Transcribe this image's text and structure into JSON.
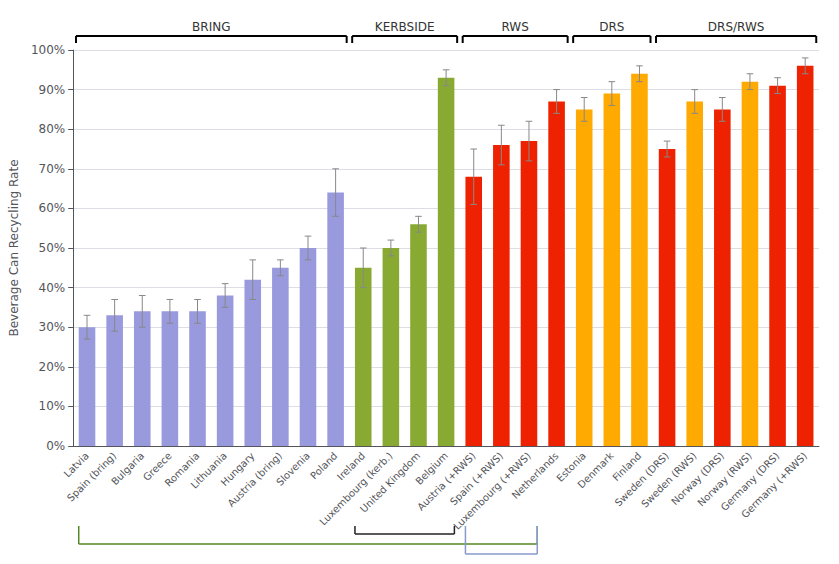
{
  "chart_data": {
    "type": "bar",
    "categories": [
      "Latvia",
      "Spain (bring)",
      "Bulgaria",
      "Greece",
      "Romania",
      "Lithuania",
      "Hungary",
      "Austria (bring)",
      "Slovenia",
      "Poland",
      "Ireland",
      "Luxembourg (kerb.)",
      "United Kingdom",
      "Belgium",
      "Austria (+RWS)",
      "Spain (+RWS)",
      "Luxembourg (+RWS)",
      "Netherlands",
      "Estonia",
      "Denmark",
      "Finland",
      "Sweden (DRS)",
      "Sweden (RWS)",
      "Norway (DRS)",
      "Norway (RWS)",
      "Germany (DRS)",
      "Germany (+RWS)"
    ],
    "values": [
      30,
      33,
      34,
      34,
      34,
      38,
      42,
      45,
      50,
      64,
      45,
      50,
      56,
      93,
      68,
      76,
      77,
      87,
      85,
      89,
      94,
      75,
      87,
      85,
      92,
      91,
      96
    ],
    "errors": [
      3,
      4,
      4,
      3,
      3,
      3,
      5,
      2,
      3,
      6,
      5,
      2,
      2,
      2,
      7,
      5,
      5,
      3,
      3,
      3,
      2,
      2,
      3,
      3,
      2,
      2,
      2
    ],
    "colors": [
      "#9999dd",
      "#9999dd",
      "#9999dd",
      "#9999dd",
      "#9999dd",
      "#9999dd",
      "#9999dd",
      "#9999dd",
      "#9999dd",
      "#9999dd",
      "#88aa33",
      "#88aa33",
      "#88aa33",
      "#88aa33",
      "#ee2200",
      "#ee2200",
      "#ee2200",
      "#ee2200",
      "#ffaa00",
      "#ffaa00",
      "#ffaa00",
      "#ee2200",
      "#ffaa00",
      "#ee2200",
      "#ffaa00",
      "#ee2200",
      "#ee2200"
    ],
    "ylabel": "Beverage Can Recycling Rate",
    "ylim": [
      0,
      100
    ],
    "yticks": [
      {
        "value": 0,
        "label": "0%"
      },
      {
        "value": 10,
        "label": "10%"
      },
      {
        "value": 20,
        "label": "20%"
      },
      {
        "value": 30,
        "label": "30%"
      },
      {
        "value": 40,
        "label": "40%"
      },
      {
        "value": 50,
        "label": "50%"
      },
      {
        "value": 60,
        "label": "60%"
      },
      {
        "value": 70,
        "label": "70%"
      },
      {
        "value": 80,
        "label": "80%"
      },
      {
        "value": 90,
        "label": "90%"
      },
      {
        "value": 100,
        "label": "100%"
      }
    ],
    "grid": true,
    "annotations": [
      {
        "text": "BRING",
        "from": "Latvia",
        "to": "Poland"
      },
      {
        "text": "KERBSIDE",
        "from": "Ireland",
        "to": "Belgium"
      },
      {
        "text": "RWS",
        "from": "Austria (+RWS)",
        "to": "Netherlands"
      },
      {
        "text": "DRS",
        "from": "Estonia",
        "to": "Finland"
      },
      {
        "text": "DRS/RWS",
        "from": "Sweden (DRS)",
        "to": "Germany (+RWS)"
      }
    ],
    "brackets": [
      {
        "from": "Latvia",
        "to": "Luxembourg (+RWS)",
        "color": "#558822"
      },
      {
        "from": "Ireland",
        "to": "Belgium",
        "color": "#222222"
      },
      {
        "from": "Austria (+RWS)",
        "to": "Luxembourg (+RWS)",
        "color": "#8899cc"
      }
    ]
  }
}
